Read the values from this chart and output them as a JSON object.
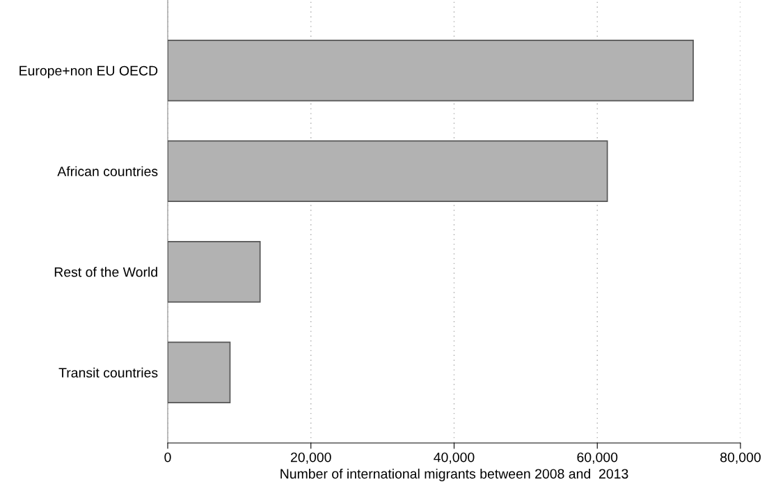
{
  "chart_data": {
    "type": "bar",
    "orientation": "horizontal",
    "categories": [
      "Europe+non EU OECD",
      "African countries",
      "Rest of the World",
      "Transit countries"
    ],
    "values": [
      73400,
      61400,
      12900,
      8700
    ],
    "color": "#b2b2b2",
    "xlim": [
      0,
      80000
    ],
    "xticks": [
      {
        "value": 0,
        "label": "0"
      },
      {
        "value": 20000,
        "label": "20,000"
      },
      {
        "value": 40000,
        "label": "40,000"
      },
      {
        "value": 60000,
        "label": "60,000"
      },
      {
        "value": 80000,
        "label": "80,000"
      }
    ],
    "xlabel": "Number of international migrants between 2008 and  2013",
    "grid": "x"
  }
}
